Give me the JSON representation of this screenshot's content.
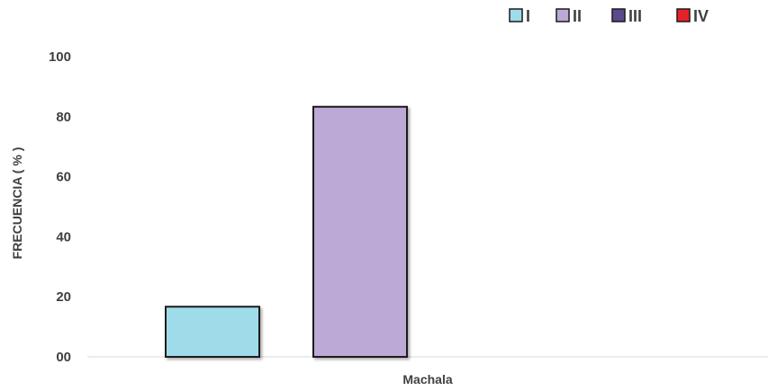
{
  "chart_data": {
    "type": "bar",
    "categories": [
      "Machala"
    ],
    "series": [
      {
        "name": "I",
        "values": [
          16.7
        ],
        "color": "#9FDCE9"
      },
      {
        "name": "II",
        "values": [
          83.3
        ],
        "color": "#BCA9D6"
      },
      {
        "name": "III",
        "values": [
          0
        ],
        "color": "#5B4B8A"
      },
      {
        "name": "IV",
        "values": [
          0
        ],
        "color": "#E8202A"
      }
    ],
    "ylabel": "FRECUENCIA ( % )",
    "xlabel": "",
    "ylim": [
      0,
      100
    ],
    "yticks": [
      "00",
      "20",
      "40",
      "60",
      "80",
      "100"
    ],
    "grid": false,
    "legend_position": "top-right"
  }
}
